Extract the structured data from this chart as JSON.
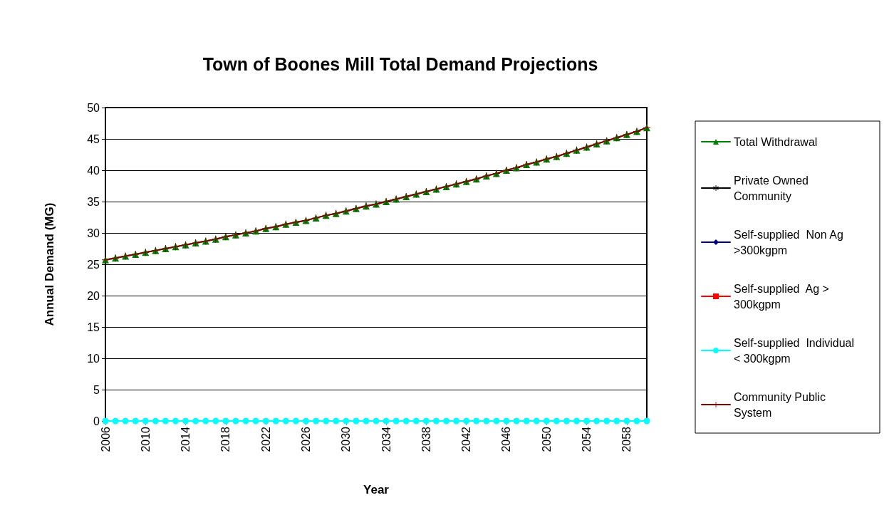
{
  "chart_data": {
    "type": "line",
    "title": "Town of Boones Mill Total Demand Projections",
    "xlabel": "Year",
    "ylabel": "Annual Demand (MG)",
    "categories": [
      "2006",
      null,
      null,
      null,
      "2010",
      null,
      null,
      null,
      "2014",
      null,
      null,
      null,
      "2018",
      null,
      null,
      null,
      "2022",
      null,
      null,
      null,
      "2026",
      null,
      null,
      null,
      "2030",
      null,
      null,
      null,
      "2034",
      null,
      null,
      null,
      "2038",
      null,
      null,
      null,
      "2042",
      null,
      null,
      null,
      "2046",
      null,
      null,
      null,
      "2050",
      null,
      null,
      null,
      "2054",
      null,
      null,
      null,
      "2058",
      null,
      null
    ],
    "series": [
      {
        "name": "Total Withdrawal",
        "color": "#008000",
        "marker": "triangle",
        "values": [
          25.7,
          26.0,
          26.3,
          26.6,
          26.9,
          27.2,
          27.5,
          27.8,
          28.1,
          28.4,
          28.7,
          29.0,
          29.4,
          29.7,
          30.0,
          30.3,
          30.7,
          31.0,
          31.4,
          31.7,
          32.0,
          32.4,
          32.8,
          33.1,
          33.5,
          33.9,
          34.3,
          34.6,
          35.0,
          35.4,
          35.8,
          36.2,
          36.6,
          37.0,
          37.4,
          37.8,
          38.2,
          38.6,
          39.1,
          39.5,
          40.0,
          40.4,
          40.9,
          41.3,
          41.8,
          42.2,
          42.7,
          43.2,
          43.7,
          44.2,
          44.7,
          45.2,
          45.7,
          46.2,
          46.8
        ]
      },
      {
        "name": "Private Owned Community",
        "color": "#000000",
        "marker": "star",
        "values": [
          null,
          null,
          null,
          null,
          null,
          null,
          null,
          null,
          null,
          null,
          null,
          null,
          null,
          null,
          null,
          null,
          null,
          null,
          null,
          null,
          null,
          null,
          null,
          null,
          null,
          null,
          null,
          null,
          null,
          null,
          null,
          null,
          null,
          null,
          null,
          null,
          null,
          null,
          null,
          null,
          null,
          null,
          null,
          null,
          null,
          null,
          null,
          null,
          null,
          null,
          null,
          null,
          null,
          null,
          null
        ]
      },
      {
        "name": "Self-supplied  Non Ag >300kgpm",
        "color": "#000080",
        "marker": "diamond",
        "values": [
          null,
          null,
          null,
          null,
          null,
          null,
          null,
          null,
          null,
          null,
          null,
          null,
          null,
          null,
          null,
          null,
          null,
          null,
          null,
          null,
          null,
          null,
          null,
          null,
          null,
          null,
          null,
          null,
          null,
          null,
          null,
          null,
          null,
          null,
          null,
          null,
          null,
          null,
          null,
          null,
          null,
          null,
          null,
          null,
          null,
          null,
          null,
          null,
          null,
          null,
          null,
          null,
          null,
          null,
          null
        ]
      },
      {
        "name": "Self-supplied  Ag > 300kgpm",
        "color": "#ff0000",
        "marker": "square",
        "values": [
          null,
          null,
          null,
          null,
          null,
          null,
          null,
          null,
          null,
          null,
          null,
          null,
          null,
          null,
          null,
          null,
          null,
          null,
          null,
          null,
          null,
          null,
          null,
          null,
          null,
          null,
          null,
          null,
          null,
          null,
          null,
          null,
          null,
          null,
          null,
          null,
          null,
          null,
          null,
          null,
          null,
          null,
          null,
          null,
          null,
          null,
          null,
          null,
          null,
          null,
          null,
          null,
          null,
          null,
          null
        ]
      },
      {
        "name": "Self-supplied  Individual < 300kgpm",
        "color": "#00ffff",
        "marker": "circle",
        "values": [
          0,
          0,
          0,
          0,
          0,
          0,
          0,
          0,
          0,
          0,
          0,
          0,
          0,
          0,
          0,
          0,
          0,
          0,
          0,
          0,
          0,
          0,
          0,
          0,
          0,
          0,
          0,
          0,
          0,
          0,
          0,
          0,
          0,
          0,
          0,
          0,
          0,
          0,
          0,
          0,
          0,
          0,
          0,
          0,
          0,
          0,
          0,
          0,
          0,
          0,
          0,
          0,
          0,
          0,
          0
        ]
      },
      {
        "name": "Community Public System",
        "color": "#800000",
        "marker": "cross",
        "values": [
          25.7,
          26.0,
          26.3,
          26.6,
          26.9,
          27.2,
          27.5,
          27.8,
          28.1,
          28.4,
          28.7,
          29.0,
          29.4,
          29.7,
          30.0,
          30.3,
          30.7,
          31.0,
          31.4,
          31.7,
          32.0,
          32.4,
          32.8,
          33.1,
          33.5,
          33.9,
          34.3,
          34.6,
          35.0,
          35.4,
          35.8,
          36.2,
          36.6,
          37.0,
          37.4,
          37.8,
          38.2,
          38.6,
          39.1,
          39.5,
          40.0,
          40.4,
          40.9,
          41.3,
          41.8,
          42.2,
          42.7,
          43.2,
          43.7,
          44.2,
          44.7,
          45.2,
          45.7,
          46.2,
          46.8
        ]
      }
    ],
    "ylim": [
      0,
      50
    ],
    "yticks": [
      0,
      5,
      10,
      15,
      20,
      25,
      30,
      35,
      40,
      45,
      50
    ],
    "grid": "y",
    "legend": "right",
    "line_style": "solid"
  }
}
